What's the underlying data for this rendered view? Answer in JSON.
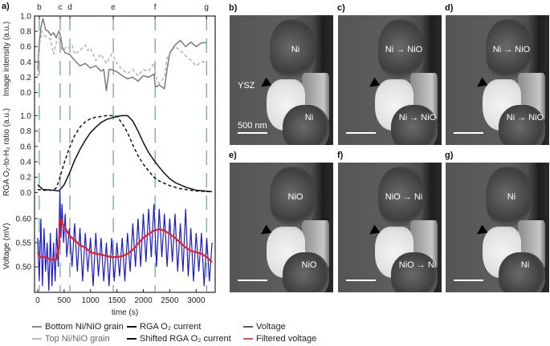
{
  "panel_labels": {
    "a": "a)",
    "b": "b)",
    "c": "c)",
    "d": "d)",
    "e": "e)",
    "f": "f)",
    "g": "g)"
  },
  "images": [
    {
      "id": "b",
      "top_label": "Ni",
      "bottom_label": "Ni",
      "extra_label": "YSZ",
      "scale_text": "500 nm"
    },
    {
      "id": "c",
      "top_label": "Ni → NiO",
      "bottom_label": "Ni → NiO"
    },
    {
      "id": "d",
      "top_label": "Ni → NiO",
      "bottom_label": "Ni → NiO"
    },
    {
      "id": "e",
      "top_label": "NiO",
      "bottom_label": "NiO"
    },
    {
      "id": "f",
      "top_label": "NiO → Ni",
      "bottom_label": "NiO → Ni"
    },
    {
      "id": "g",
      "top_label": "Ni",
      "bottom_label": "Ni"
    }
  ],
  "chart_data": {
    "type": "line",
    "xlabel": "time (s)",
    "xlim": [
      -60,
      3360
    ],
    "xticks": [
      0,
      500,
      1000,
      1500,
      2000,
      2500,
      3000
    ],
    "events": [
      {
        "label": "b",
        "t": 30
      },
      {
        "label": "c",
        "t": 426
      },
      {
        "label": "d",
        "t": 609
      },
      {
        "label": "e",
        "t": 1431
      },
      {
        "label": "f",
        "t": 2222
      },
      {
        "label": "g",
        "t": 3196
      }
    ],
    "colors": {
      "bottom": "#7a7a7a",
      "top": "#b0b0b0",
      "rga": "#111111",
      "voltage": "#1a1acc",
      "filtered": "#ee1c1c",
      "event": "#4e8a7c"
    },
    "panels": [
      {
        "ylabel": "Image intensity (a.u.)",
        "ylim": [
          -0.12,
          1.0
        ],
        "yticks": [
          "0.0",
          "0.2",
          "0.4",
          "0.6",
          "0.8",
          "1.0"
        ],
        "series": [
          {
            "name": "Bottom Ni/NiO grain",
            "style": "solid",
            "color": "bottom",
            "t": [
              0,
              30,
              60,
              100,
              150,
              200,
              250,
              300,
              350,
              400,
              430,
              470,
              520,
              600,
              700,
              800,
              900,
              1000,
              1100,
              1200,
              1250,
              1300,
              1350,
              1400,
              1500,
              1600,
              1700,
              1800,
              1900,
              2000,
              2100,
              2200,
              2230,
              2300,
              2400,
              2450,
              2500,
              2600,
              2700,
              2800,
              2900,
              3000,
              3100,
              3200
            ],
            "v": [
              0.3,
              0.65,
              0.85,
              0.97,
              0.82,
              0.8,
              0.75,
              0.78,
              0.72,
              0.8,
              0.75,
              0.58,
              0.52,
              0.5,
              0.42,
              0.35,
              0.38,
              0.32,
              0.35,
              0.28,
              0.3,
              0.02,
              0.3,
              0.3,
              0.27,
              0.22,
              0.18,
              0.2,
              0.15,
              0.22,
              0.2,
              0.24,
              0.07,
              0.1,
              0.05,
              0.3,
              0.52,
              0.62,
              0.68,
              0.6,
              0.66,
              0.6,
              0.65,
              0.65
            ]
          },
          {
            "name": "Top Ni/NiO grain",
            "style": "dashed",
            "color": "top",
            "t": [
              0,
              40,
              80,
              120,
              180,
              240,
              300,
              350,
              400,
              430,
              480,
              550,
              600,
              650,
              700,
              800,
              900,
              950,
              1000,
              1100,
              1200,
              1300,
              1400,
              1450,
              1500,
              1600,
              1700,
              1800,
              1900,
              2000,
              2100,
              2200,
              2240,
              2300,
              2400,
              2450,
              2500,
              2600,
              2700,
              2800,
              2900,
              3000,
              3100,
              3200
            ],
            "v": [
              0.2,
              0.65,
              0.8,
              0.75,
              0.72,
              0.7,
              0.5,
              0.65,
              0.72,
              0.6,
              0.55,
              0.6,
              0.58,
              0.62,
              0.5,
              0.55,
              0.62,
              0.55,
              0.58,
              0.42,
              0.5,
              0.38,
              0.5,
              0.45,
              0.38,
              0.3,
              0.25,
              0.3,
              0.22,
              0.3,
              0.28,
              0.38,
              0.2,
              0.12,
              0.2,
              0.45,
              0.5,
              0.6,
              0.55,
              0.48,
              0.42,
              0.35,
              0.4,
              0.4
            ]
          }
        ]
      },
      {
        "ylabel": "RGA O₂-to-H₂ ratio (a.u.)",
        "ylim": [
          -0.1,
          1.15
        ],
        "yticks": [
          "0.0",
          "0.2",
          "0.4",
          "0.6",
          "0.8",
          "1.0"
        ],
        "series": [
          {
            "name": "RGA O₂ current",
            "style": "solid",
            "color": "rga",
            "t": [
              0,
              100,
              300,
              400,
              500,
              600,
              700,
              800,
              900,
              1000,
              1100,
              1200,
              1300,
              1400,
              1500,
              1600,
              1700,
              1800,
              1900,
              2000,
              2100,
              2200,
              2300,
              2400,
              2500,
              2600,
              2800,
              3000,
              3300
            ],
            "v": [
              0.1,
              0.04,
              0.03,
              0.02,
              0.1,
              0.25,
              0.42,
              0.56,
              0.68,
              0.78,
              0.85,
              0.91,
              0.95,
              0.97,
              0.99,
              1.0,
              1.0,
              0.93,
              0.8,
              0.65,
              0.52,
              0.42,
              0.33,
              0.25,
              0.18,
              0.13,
              0.07,
              0.03,
              0.01
            ]
          },
          {
            "name": "Shifted RGA O₂ current",
            "style": "dashed",
            "color": "rga",
            "t": [
              0,
              100,
              300,
              350,
              400,
              500,
              600,
              700,
              800,
              900,
              1000,
              1100,
              1200,
              1300,
              1400,
              1500,
              1600,
              1700,
              1800,
              1900,
              2000,
              2100,
              2200,
              2300,
              2500,
              2700,
              3000,
              3300
            ],
            "v": [
              0.04,
              0.03,
              0.03,
              0.06,
              0.15,
              0.38,
              0.58,
              0.74,
              0.85,
              0.92,
              0.96,
              0.98,
              0.99,
              1.0,
              1.0,
              0.99,
              0.9,
              0.78,
              0.62,
              0.48,
              0.37,
              0.28,
              0.2,
              0.15,
              0.09,
              0.05,
              0.02,
              0.01
            ]
          }
        ]
      },
      {
        "ylabel": "Voltage (mV)",
        "ylim": [
          0.447,
          0.638
        ],
        "yticks": [
          "0.50",
          "0.55",
          "0.60"
        ],
        "series": [
          {
            "name": "Voltage",
            "style": "solid",
            "color": "voltage",
            "t": [
              0,
              30,
              60,
              90,
              120,
              150,
              180,
              210,
              240,
              270,
              300,
              330,
              360,
              390,
              420,
              440,
              460,
              490,
              520,
              550,
              600,
              650,
              700,
              750,
              800,
              850,
              900,
              950,
              1000,
              1050,
              1100,
              1150,
              1200,
              1250,
              1300,
              1350,
              1400,
              1450,
              1500,
              1550,
              1600,
              1650,
              1700,
              1750,
              1800,
              1850,
              1900,
              1950,
              2000,
              2050,
              2100,
              2150,
              2200,
              2250,
              2300,
              2350,
              2400,
              2450,
              2500,
              2550,
              2600,
              2650,
              2700,
              2750,
              2800,
              2850,
              2900,
              2950,
              3000,
              3050,
              3100,
              3150,
              3200,
              3250,
              3300
            ],
            "v": [
              0.56,
              0.47,
              0.6,
              0.46,
              0.58,
              0.49,
              0.55,
              0.45,
              0.57,
              0.46,
              0.55,
              0.47,
              0.58,
              0.5,
              0.66,
              0.56,
              0.63,
              0.55,
              0.61,
              0.52,
              0.58,
              0.5,
              0.59,
              0.49,
              0.58,
              0.47,
              0.57,
              0.49,
              0.56,
              0.46,
              0.57,
              0.48,
              0.56,
              0.47,
              0.55,
              0.46,
              0.56,
              0.47,
              0.55,
              0.48,
              0.56,
              0.47,
              0.57,
              0.49,
              0.59,
              0.5,
              0.6,
              0.5,
              0.61,
              0.51,
              0.62,
              0.52,
              0.63,
              0.5,
              0.62,
              0.52,
              0.61,
              0.5,
              0.6,
              0.51,
              0.61,
              0.49,
              0.59,
              0.49,
              0.62,
              0.48,
              0.58,
              0.47,
              0.57,
              0.49,
              0.57,
              0.46,
              0.56,
              0.47,
              0.55
            ]
          },
          {
            "name": "Filtered voltage",
            "style": "solid",
            "color": "filtered",
            "t": [
              0,
              50,
              150,
              250,
              350,
              400,
              430,
              460,
              500,
              600,
              700,
              800,
              900,
              1000,
              1200,
              1400,
              1500,
              1600,
              1700,
              1800,
              1900,
              2000,
              2100,
              2200,
              2300,
              2400,
              2500,
              2600,
              2700,
              2800,
              2900,
              3000,
              3100,
              3200,
              3300
            ],
            "v": [
              0.53,
              0.52,
              0.52,
              0.515,
              0.515,
              0.54,
              0.6,
              0.59,
              0.585,
              0.565,
              0.555,
              0.545,
              0.54,
              0.53,
              0.525,
              0.52,
              0.52,
              0.522,
              0.527,
              0.535,
              0.548,
              0.56,
              0.568,
              0.575,
              0.578,
              0.575,
              0.568,
              0.56,
              0.55,
              0.54,
              0.533,
              0.53,
              0.527,
              0.52,
              0.51
            ]
          }
        ]
      }
    ]
  },
  "legend": {
    "bottom": "Bottom Ni/NiO grain",
    "top": "Top Ni/NiO grain",
    "rga": "RGA O₂ current",
    "shifted": "Shifted RGA O₂ current",
    "voltage": "Voltage",
    "filtered": "Filtered voltage"
  }
}
